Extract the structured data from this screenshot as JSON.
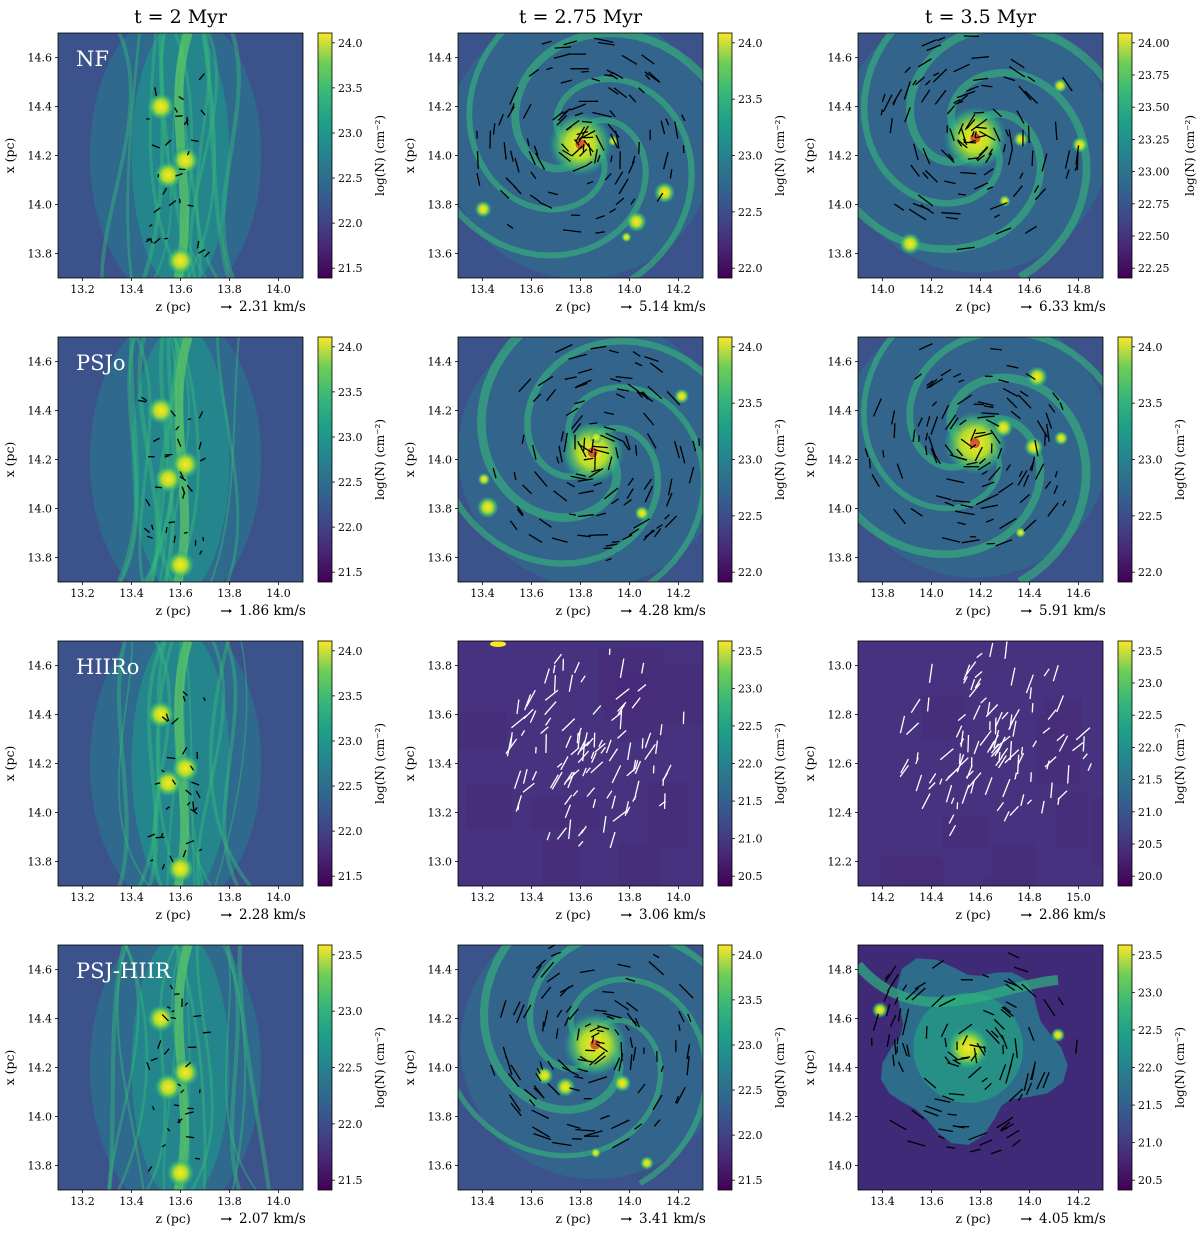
{
  "figure": {
    "column_titles": [
      "t = 2 Myr",
      "t = 2.75 Myr",
      "t = 3.5 Myr"
    ],
    "xlabel": "z (pc)",
    "ylabel": "x (pc)",
    "colorbar_label": "log(N) (cm⁻²)",
    "colormap": "viridis",
    "colors": {
      "viridis_low": "#440154",
      "viridis_mid": "#21918c",
      "viridis_high": "#fde725",
      "arrow_dark": "#000000",
      "arrow_light": "#ffffff"
    },
    "rows": [
      {
        "run": "NF",
        "panels": [
          {
            "xticks": [
              "13.2",
              "13.4",
              "13.6",
              "13.8",
              "14.0"
            ],
            "yticks": [
              "14.6",
              "14.4",
              "14.2",
              "14.0",
              "13.8"
            ],
            "cbticks": [
              "24.0",
              "23.5",
              "23.0",
              "22.5",
              "22.0",
              "21.5"
            ],
            "velocity": "2.31 km/s",
            "style": "filament"
          },
          {
            "xticks": [
              "13.4",
              "13.6",
              "13.8",
              "14.0",
              "14.2"
            ],
            "yticks": [
              "14.4",
              "14.2",
              "14.0",
              "13.8",
              "13.6"
            ],
            "cbticks": [
              "24.0",
              "23.5",
              "23.0",
              "22.5",
              "22.0"
            ],
            "velocity": "5.14 km/s",
            "style": "spiral"
          },
          {
            "xticks": [
              "14.0",
              "14.2",
              "14.4",
              "14.6",
              "14.8"
            ],
            "yticks": [
              "14.6",
              "14.4",
              "14.2",
              "14.0",
              "13.8"
            ],
            "cbticks": [
              "24.00",
              "23.75",
              "23.50",
              "23.25",
              "23.00",
              "22.75",
              "22.50",
              "22.25"
            ],
            "velocity": "6.33 km/s",
            "style": "spiral"
          }
        ]
      },
      {
        "run": "PSJo",
        "panels": [
          {
            "xticks": [
              "13.2",
              "13.4",
              "13.6",
              "13.8",
              "14.0"
            ],
            "yticks": [
              "14.6",
              "14.4",
              "14.2",
              "14.0",
              "13.8"
            ],
            "cbticks": [
              "24.0",
              "23.5",
              "23.0",
              "22.5",
              "22.0",
              "21.5"
            ],
            "velocity": "1.86 km/s",
            "style": "filament"
          },
          {
            "xticks": [
              "13.4",
              "13.6",
              "13.8",
              "14.0",
              "14.2"
            ],
            "yticks": [
              "14.4",
              "14.2",
              "14.0",
              "13.8",
              "13.6"
            ],
            "cbticks": [
              "24.0",
              "23.5",
              "23.0",
              "22.5",
              "22.0"
            ],
            "velocity": "4.28 km/s",
            "style": "spiral"
          },
          {
            "xticks": [
              "13.8",
              "14.0",
              "14.2",
              "14.4",
              "14.6"
            ],
            "yticks": [
              "14.6",
              "14.4",
              "14.2",
              "14.0",
              "13.8"
            ],
            "cbticks": [
              "24.0",
              "23.5",
              "23.0",
              "22.5",
              "22.0"
            ],
            "velocity": "5.91 km/s",
            "style": "spiral"
          }
        ]
      },
      {
        "run": "HIIRo",
        "panels": [
          {
            "xticks": [
              "13.2",
              "13.4",
              "13.6",
              "13.8",
              "14.0"
            ],
            "yticks": [
              "14.6",
              "14.4",
              "14.2",
              "14.0",
              "13.8"
            ],
            "cbticks": [
              "24.0",
              "23.5",
              "23.0",
              "22.5",
              "22.0",
              "21.5"
            ],
            "velocity": "2.28 km/s",
            "style": "filament"
          },
          {
            "xticks": [
              "13.2",
              "13.4",
              "13.6",
              "13.8",
              "14.0"
            ],
            "yticks": [
              "13.8",
              "13.6",
              "13.4",
              "13.2",
              "13.0"
            ],
            "cbticks": [
              "23.5",
              "23.0",
              "22.5",
              "22.0",
              "21.5",
              "21.0",
              "20.5"
            ],
            "velocity": "3.06 km/s",
            "style": "dispersed"
          },
          {
            "xticks": [
              "14.2",
              "14.4",
              "14.6",
              "14.8",
              "15.0"
            ],
            "yticks": [
              "13.0",
              "12.8",
              "12.6",
              "12.4",
              "12.2"
            ],
            "cbticks": [
              "23.5",
              "23.0",
              "22.5",
              "22.0",
              "21.5",
              "21.0",
              "20.5",
              "20.0"
            ],
            "velocity": "2.86 km/s",
            "style": "dispersed"
          }
        ]
      },
      {
        "run": "PSJ-HIIR",
        "panels": [
          {
            "xticks": [
              "13.2",
              "13.4",
              "13.6",
              "13.8",
              "14.0"
            ],
            "yticks": [
              "14.6",
              "14.4",
              "14.2",
              "14.0",
              "13.8"
            ],
            "cbticks": [
              "23.5",
              "23.0",
              "22.5",
              "22.0",
              "21.5"
            ],
            "velocity": "2.07 km/s",
            "style": "filament"
          },
          {
            "xticks": [
              "13.4",
              "13.6",
              "13.8",
              "14.0",
              "14.2"
            ],
            "yticks": [
              "14.4",
              "14.2",
              "14.0",
              "13.8",
              "13.6"
            ],
            "cbticks": [
              "24.0",
              "23.5",
              "23.0",
              "22.5",
              "22.0",
              "21.5"
            ],
            "velocity": "3.41 km/s",
            "style": "spiral"
          },
          {
            "xticks": [
              "13.4",
              "13.6",
              "13.8",
              "14.0",
              "14.2"
            ],
            "yticks": [
              "14.8",
              "14.6",
              "14.4",
              "14.2",
              "14.0"
            ],
            "cbticks": [
              "23.5",
              "23.0",
              "22.5",
              "22.0",
              "21.5",
              "21.0",
              "20.5"
            ],
            "velocity": "4.05 km/s",
            "style": "bubble"
          }
        ]
      }
    ]
  }
}
